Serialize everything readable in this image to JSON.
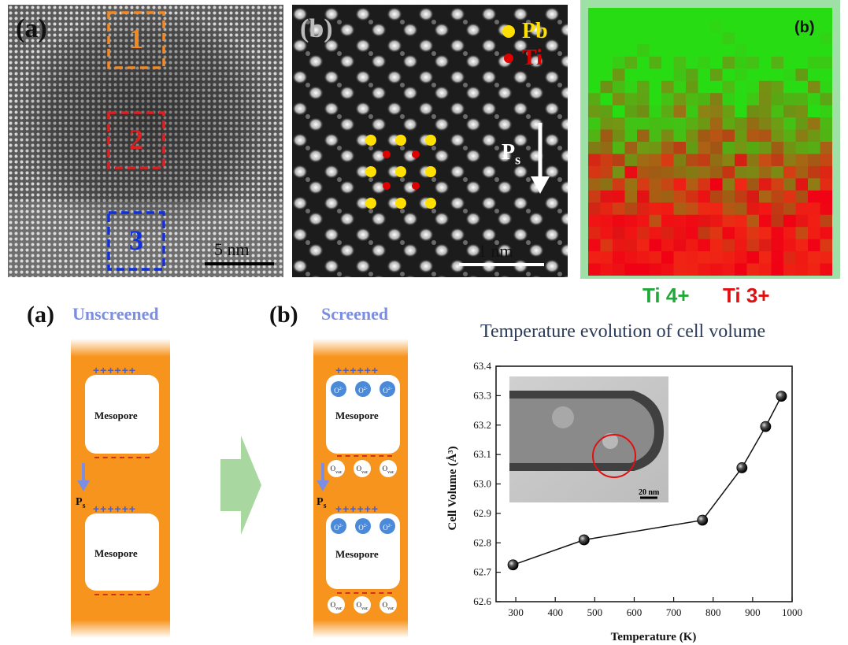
{
  "panel_a_stem": {
    "label": "(a)",
    "regions": [
      "1",
      "2",
      "3"
    ],
    "scale_bar": "5 nm"
  },
  "panel_b_stem": {
    "label": "(b)",
    "legend": [
      {
        "name": "Pb",
        "color": "#ffe000"
      },
      {
        "name": "Ti",
        "color": "#e00000"
      }
    ],
    "polarization": "P",
    "polarization_sub": "s",
    "scale_bar": "1 nm"
  },
  "panel_eels_map": {
    "label": "(b)",
    "legend": [
      {
        "name": "Ti 4+",
        "color": "#22a83a"
      },
      {
        "name": "Ti 3+",
        "color": "#e01010"
      }
    ]
  },
  "schematic_unscreened": {
    "label": "(a)",
    "title": "Unscreened",
    "pores": [
      "Mesopore",
      "Mesopore"
    ],
    "plus_signs": "++++++",
    "polarization": "P",
    "polarization_sub": "s"
  },
  "schematic_screened": {
    "label": "(b)",
    "title": "Screened",
    "pores": [
      "Mesopore",
      "Mesopore"
    ],
    "plus_signs": "++++++",
    "oxygen_ion": "O",
    "oxygen_ion_sup": "2-",
    "vacancy": "O",
    "vacancy_sub": "vac",
    "polarization": "P",
    "polarization_sub": "s"
  },
  "colors": {
    "orange_layer": "#f7941d",
    "arrow_green": "#a8d8a0",
    "arrow_blue": "#7b8ee0",
    "title_blue": "#7b8ee0",
    "region_1": "#f08a24",
    "region_2": "#e02020",
    "region_3": "#1030e0"
  },
  "chart_title": "Temperature evolution of cell volume",
  "chart_data": {
    "type": "line",
    "title": "Temperature evolution of cell volume",
    "xlabel": "Temperature (K)",
    "ylabel": "Cell Volume (Å³)",
    "xlim": [
      250,
      1000
    ],
    "ylim": [
      62.6,
      63.4
    ],
    "xticks": [
      300,
      400,
      500,
      600,
      700,
      800,
      900,
      1000
    ],
    "yticks": [
      62.6,
      62.7,
      62.8,
      62.9,
      63.0,
      63.1,
      63.2,
      63.3,
      63.4
    ],
    "xtick_labels": [
      "300",
      "400",
      "500",
      "600",
      "700",
      "800",
      "900",
      "1000"
    ],
    "ytick_labels": [
      "62.6",
      "62.7",
      "62.8",
      "62.9",
      "63.0",
      "63.1",
      "63.2",
      "63.3",
      "63.4"
    ],
    "series": [
      {
        "x": [
          293,
          473,
          773,
          873,
          933,
          973
        ],
        "y": [
          62.725,
          62.81,
          62.877,
          63.055,
          63.195,
          63.298
        ]
      }
    ],
    "inset_scale_bar": "20 nm",
    "grid": false
  }
}
